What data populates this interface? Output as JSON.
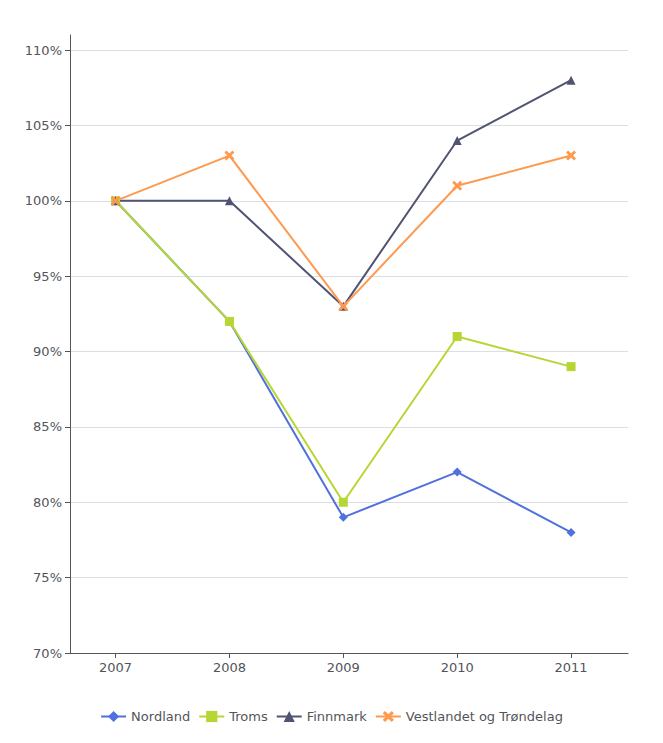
{
  "chart_data": {
    "type": "line",
    "x": [
      2007,
      2008,
      2009,
      2010,
      2011
    ],
    "series": [
      {
        "name": "Nordland",
        "values": [
          100,
          92,
          79,
          82,
          78
        ],
        "marker": "diamond"
      },
      {
        "name": "Troms",
        "values": [
          100,
          92,
          80,
          91,
          89
        ],
        "marker": "square"
      },
      {
        "name": "Finnmark",
        "values": [
          100,
          100,
          93,
          104,
          108
        ],
        "marker": "triangle"
      },
      {
        "name": "Vestlandet og Trøndelag",
        "values": [
          100,
          103,
          93,
          101,
          103
        ],
        "marker": "x"
      }
    ],
    "xlim": [
      2006.6,
      2011.5
    ],
    "xticks": [
      2007,
      2008,
      2009,
      2010,
      2011
    ],
    "ylim": [
      70,
      111
    ],
    "yticks": [
      {
        "value": 70,
        "label": "70%"
      },
      {
        "value": 75,
        "label": "75%"
      },
      {
        "value": 80,
        "label": "80%"
      },
      {
        "value": 85,
        "label": "85%"
      },
      {
        "value": 90,
        "label": "90%"
      },
      {
        "value": 95,
        "label": "95%"
      },
      {
        "value": 100,
        "label": "100%"
      },
      {
        "value": 105,
        "label": "105%"
      },
      {
        "value": 110,
        "label": "110%"
      }
    ],
    "grid": true,
    "legend": "bottom"
  }
}
